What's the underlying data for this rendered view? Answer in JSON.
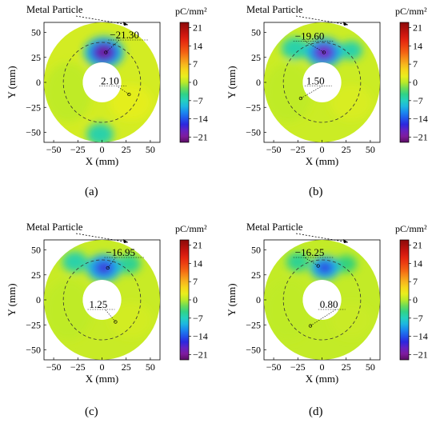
{
  "colorbar": {
    "unit": "pC/mm²",
    "ticks": [
      21,
      14,
      7,
      0,
      -7,
      -14,
      -21
    ],
    "range": [
      -23,
      23
    ]
  },
  "chart_data": [
    {
      "type": "heatmap",
      "panel": "(a)",
      "xlabel": "X (mm)",
      "ylabel": "Y (mm)",
      "xlim": [
        -60,
        60
      ],
      "ylim": [
        -60,
        60
      ],
      "xticks": [
        -50,
        -25,
        0,
        25,
        50
      ],
      "yticks": [
        50,
        25,
        0,
        -25,
        -50
      ],
      "particle_label": "Metal Particle",
      "min_label": "−21.30",
      "max_label": "2.10",
      "values": {
        "min": -21.3,
        "max": 2.1
      }
    },
    {
      "type": "heatmap",
      "panel": "(b)",
      "xlabel": "X (mm)",
      "ylabel": "Y (mm)",
      "xlim": [
        -60,
        60
      ],
      "ylim": [
        -60,
        60
      ],
      "xticks": [
        -50,
        -25,
        0,
        25,
        50
      ],
      "yticks": [
        50,
        25,
        0,
        -25,
        -50
      ],
      "particle_label": "Metal Particle",
      "min_label": "−19.60",
      "max_label": "1.50",
      "values": {
        "min": -19.6,
        "max": 1.5
      }
    },
    {
      "type": "heatmap",
      "panel": "(c)",
      "xlabel": "X (mm)",
      "ylabel": "Y (mm)",
      "xlim": [
        -60,
        60
      ],
      "ylim": [
        -60,
        60
      ],
      "xticks": [
        -50,
        -25,
        0,
        25,
        50
      ],
      "yticks": [
        50,
        25,
        0,
        -25,
        -50
      ],
      "particle_label": "Metal Particle",
      "min_label": "−16.95",
      "max_label": "1.25",
      "values": {
        "min": -16.95,
        "max": 1.25
      }
    },
    {
      "type": "heatmap",
      "panel": "(d)",
      "xlabel": "X (mm)",
      "ylabel": "Y (mm)",
      "xlim": [
        -60,
        60
      ],
      "ylim": [
        -60,
        60
      ],
      "xticks": [
        -50,
        -25,
        0,
        25,
        50
      ],
      "yticks": [
        50,
        25,
        0,
        -25,
        -50
      ],
      "particle_label": "Metal Particle",
      "min_label": "−16.25",
      "max_label": "0.80",
      "values": {
        "min": -16.25,
        "max": 0.8
      }
    }
  ]
}
